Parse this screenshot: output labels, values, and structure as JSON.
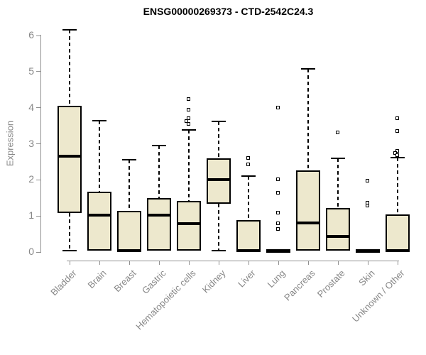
{
  "chart_data": {
    "type": "boxplot",
    "title": "ENSG00000269373 - CTD-2542C24.3",
    "xlabel": "",
    "ylabel": "Expression",
    "ylim": [
      0,
      6
    ],
    "yticks": [
      0,
      1,
      2,
      3,
      4,
      5,
      6
    ],
    "grid": false,
    "legend": "none",
    "categories": [
      "Bladder",
      "Brain",
      "Breast",
      "Gastric",
      "Hematopoietic cells",
      "Kidney",
      "Liver",
      "Lung",
      "Pancreas",
      "Prostate",
      "Skin",
      "Unknown / Other"
    ],
    "series": [
      {
        "label": "Bladder",
        "whisker_low": 0.04,
        "q1": 1.08,
        "median": 2.66,
        "q3": 4.06,
        "whisker_high": 6.15,
        "outliers": []
      },
      {
        "label": "Brain",
        "whisker_low": 0.02,
        "q1": 0.04,
        "median": 1.02,
        "q3": 1.68,
        "whisker_high": 3.63,
        "outliers": []
      },
      {
        "label": "Breast",
        "whisker_low": 0.01,
        "q1": 0.02,
        "median": 0.04,
        "q3": 1.15,
        "whisker_high": 2.56,
        "outliers": []
      },
      {
        "label": "Gastric",
        "whisker_low": 0.02,
        "q1": 0.04,
        "median": 1.03,
        "q3": 1.5,
        "whisker_high": 2.95,
        "outliers": []
      },
      {
        "label": "Hematopoietic cells",
        "whisker_low": 0.02,
        "q1": 0.03,
        "median": 0.78,
        "q3": 1.42,
        "whisker_high": 3.38,
        "outliers": [
          4.22,
          3.93,
          3.7,
          3.62,
          3.55
        ]
      },
      {
        "label": "Kidney",
        "whisker_low": 0.04,
        "q1": 1.34,
        "median": 2.01,
        "q3": 2.6,
        "whisker_high": 3.62,
        "outliers": []
      },
      {
        "label": "Liver",
        "whisker_low": 0.01,
        "q1": 0.02,
        "median": 0.04,
        "q3": 0.89,
        "whisker_high": 2.1,
        "outliers": [
          2.6,
          2.42
        ]
      },
      {
        "label": "Lung",
        "whisker_low": 0.01,
        "q1": 0.02,
        "median": 0.04,
        "q3": 0.06,
        "whisker_high": 0.06,
        "outliers": [
          3.99,
          2.01,
          1.63,
          1.08,
          0.78,
          0.62
        ]
      },
      {
        "label": "Pancreas",
        "whisker_low": 0.02,
        "q1": 0.04,
        "median": 0.8,
        "q3": 2.26,
        "whisker_high": 5.07,
        "outliers": []
      },
      {
        "label": "Prostate",
        "whisker_low": 0.02,
        "q1": 0.03,
        "median": 0.43,
        "q3": 1.22,
        "whisker_high": 2.6,
        "outliers": [
          3.3
        ]
      },
      {
        "label": "Skin",
        "whisker_low": 0.01,
        "q1": 0.02,
        "median": 0.04,
        "q3": 0.06,
        "whisker_high": 0.06,
        "outliers": [
          1.97,
          1.35,
          1.28
        ]
      },
      {
        "label": "Unknown / Other",
        "whisker_low": 0.01,
        "q1": 0.02,
        "median": 0.04,
        "q3": 1.04,
        "whisker_high": 2.62,
        "outliers": [
          3.7,
          3.35,
          2.8,
          2.74,
          2.68
        ]
      }
    ]
  },
  "colors": {
    "box_fill": "#EDE8CD",
    "box_border": "#000000",
    "median": "#000000",
    "whisker": "#000000",
    "axis": "#909090",
    "tick_text": "#878787",
    "title_text": "#000000",
    "background": "#ffffff"
  }
}
